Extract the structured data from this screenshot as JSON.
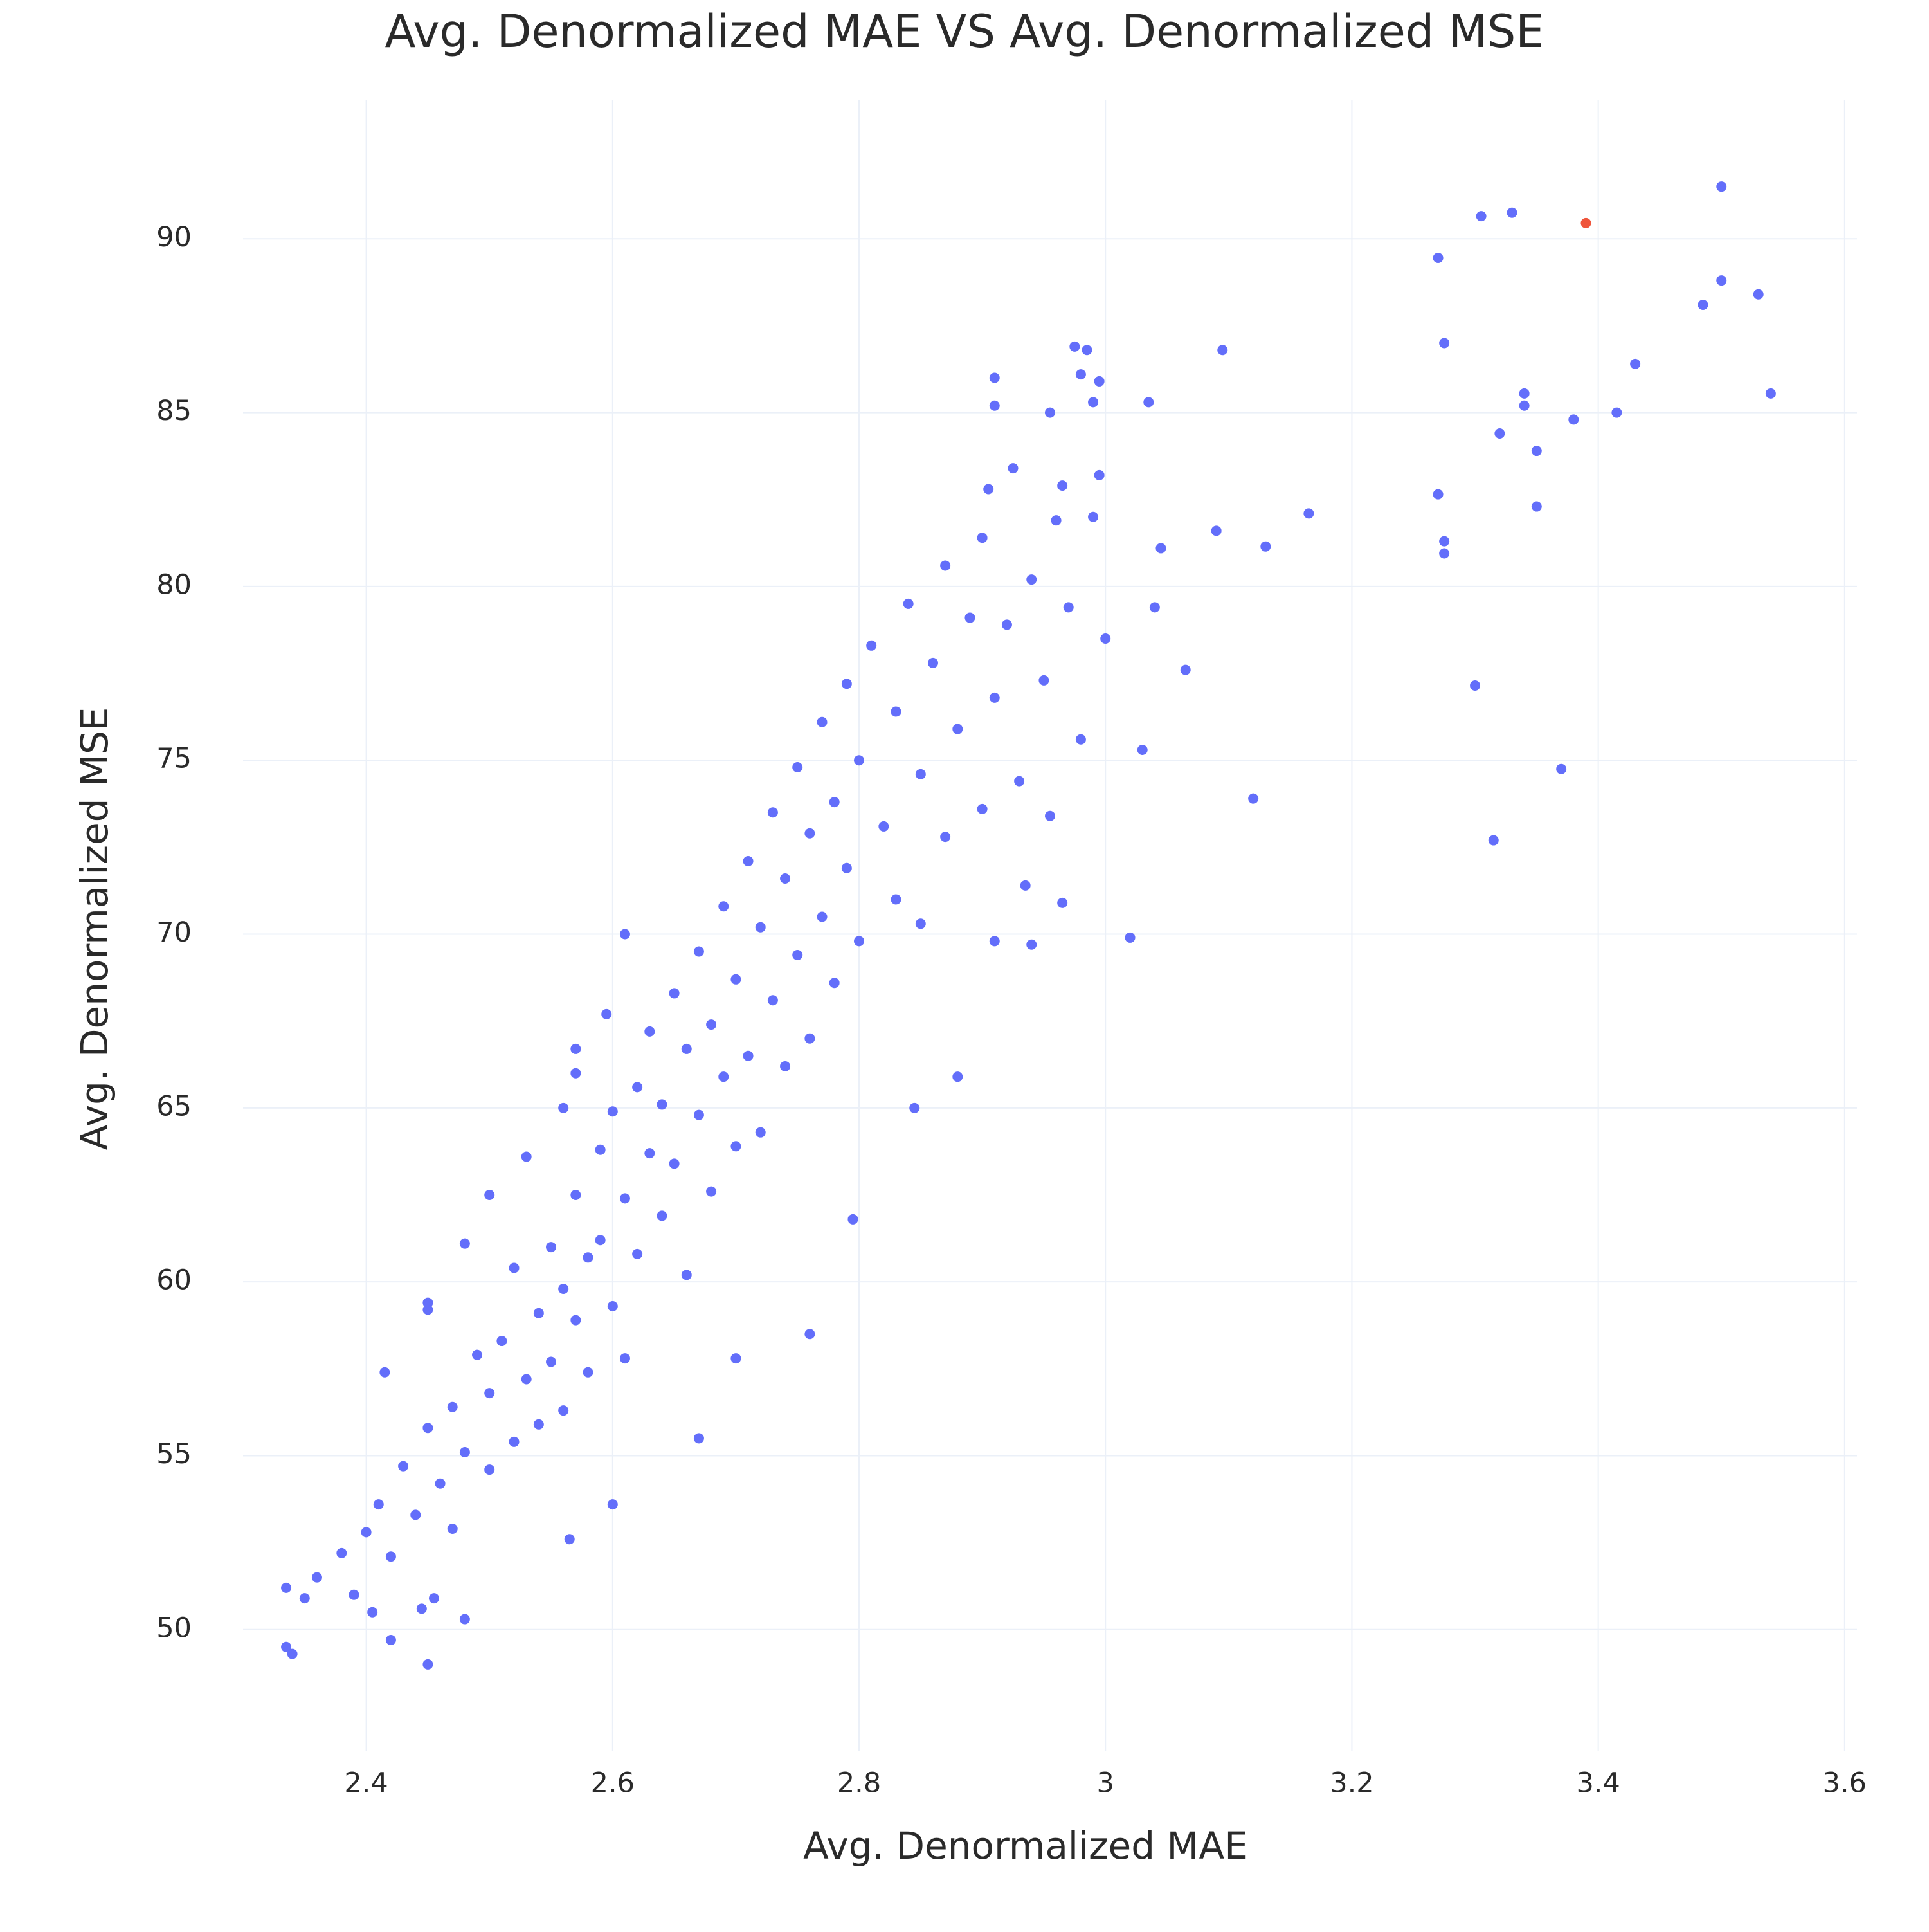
{
  "chart_data": {
    "type": "scatter",
    "title": "Avg. Denormalized MAE VS Avg. Denormalized MSE",
    "x_label": "Avg. Denormalized MAE",
    "y_label": "Avg. Denormalized MSE",
    "xlim": [
      2.3,
      3.61
    ],
    "ylim": [
      46.5,
      94
    ],
    "xticks": [
      2.4,
      2.6,
      2.8,
      3,
      3.2,
      3.4,
      3.6
    ],
    "yticks": [
      50,
      55,
      60,
      65,
      70,
      75,
      80,
      85,
      90
    ],
    "grid": true,
    "series": [
      {
        "color": "#636efa",
        "x": [
          3.5,
          3.305,
          3.33,
          3.27,
          3.5,
          3.485,
          3.53,
          3.275,
          3.43,
          3.54,
          3.34,
          3.34,
          3.415,
          3.32,
          3.38,
          3.35,
          3.27,
          3.35,
          3.275,
          3.275,
          3.3,
          3.37,
          3.315,
          3.165,
          3.13,
          3.09,
          3.095,
          3.12,
          3.065,
          3.02,
          3.03,
          3.035,
          3.045,
          3.04,
          2.975,
          2.98,
          2.985,
          2.99,
          2.91,
          2.91,
          2.995,
          2.955,
          2.925,
          2.965,
          2.995,
          2.905,
          2.88,
          2.845,
          2.795,
          2.76,
          2.7,
          2.67,
          2.45,
          2.335,
          2.34,
          2.42,
          2.48,
          2.405,
          2.335,
          2.35,
          2.445,
          2.455,
          2.565,
          2.6,
          2.415,
          2.48,
          2.45,
          2.45,
          2.57,
          2.61,
          2.595,
          2.57,
          2.53,
          2.56,
          2.5,
          2.955,
          2.965,
          2.94,
          2.935,
          2.91,
          2.36,
          2.38,
          2.39,
          2.4,
          2.41,
          2.42,
          2.43,
          2.44,
          2.45,
          2.46,
          2.47,
          2.47,
          2.48,
          2.49,
          2.5,
          2.5,
          2.51,
          2.52,
          2.52,
          2.53,
          2.54,
          2.54,
          2.55,
          2.55,
          2.56,
          2.56,
          2.57,
          2.57,
          2.58,
          2.58,
          2.59,
          2.59,
          2.6,
          2.6,
          2.61,
          2.61,
          2.62,
          2.62,
          2.63,
          2.63,
          2.64,
          2.64,
          2.65,
          2.65,
          2.66,
          2.66,
          2.67,
          2.67,
          2.68,
          2.68,
          2.69,
          2.69,
          2.7,
          2.7,
          2.71,
          2.71,
          2.72,
          2.72,
          2.73,
          2.73,
          2.74,
          2.74,
          2.75,
          2.75,
          2.76,
          2.76,
          2.77,
          2.77,
          2.78,
          2.78,
          2.79,
          2.79,
          2.8,
          2.8,
          2.81,
          2.82,
          2.83,
          2.83,
          2.84,
          2.85,
          2.85,
          2.86,
          2.87,
          2.87,
          2.88,
          2.89,
          2.9,
          2.9,
          2.91,
          2.92,
          2.93,
          2.94,
          2.95,
          2.96,
          2.97,
          2.98,
          2.99,
          3.0
        ],
        "values": [
          91.5,
          90.65,
          90.75,
          89.45,
          88.8,
          88.1,
          88.4,
          87.0,
          86.4,
          85.55,
          85.55,
          85.2,
          85.0,
          84.4,
          84.8,
          83.9,
          82.65,
          82.3,
          81.3,
          80.95,
          77.15,
          74.75,
          72.7,
          82.1,
          81.15,
          81.6,
          86.8,
          73.9,
          77.6,
          69.9,
          75.3,
          85.3,
          81.1,
          79.4,
          86.9,
          86.1,
          86.8,
          85.3,
          86.0,
          85.2,
          85.9,
          85.0,
          83.4,
          82.9,
          83.2,
          82.8,
          65.9,
          65.0,
          61.8,
          58.5,
          57.8,
          55.5,
          49.0,
          49.5,
          49.3,
          49.7,
          50.3,
          50.5,
          51.2,
          50.9,
          50.6,
          50.9,
          52.6,
          53.6,
          57.4,
          61.1,
          59.4,
          59.2,
          66.7,
          70.0,
          67.7,
          66.0,
          63.6,
          65.0,
          62.5,
          73.4,
          70.9,
          69.7,
          71.4,
          69.8,
          51.5,
          52.2,
          51.0,
          52.8,
          53.6,
          52.1,
          54.7,
          53.3,
          55.8,
          54.2,
          52.9,
          56.4,
          55.1,
          57.9,
          54.6,
          56.8,
          58.3,
          55.4,
          60.4,
          57.2,
          59.1,
          55.9,
          61.0,
          57.7,
          59.8,
          56.3,
          62.5,
          58.9,
          60.7,
          57.4,
          63.8,
          61.2,
          59.3,
          64.9,
          62.4,
          57.8,
          65.6,
          60.8,
          63.7,
          67.2,
          61.9,
          65.1,
          68.3,
          63.4,
          66.7,
          60.2,
          64.8,
          69.5,
          67.4,
          62.6,
          70.8,
          65.9,
          68.7,
          63.9,
          72.1,
          66.5,
          70.2,
          64.3,
          73.5,
          68.1,
          71.6,
          66.2,
          74.8,
          69.4,
          72.9,
          67.0,
          76.1,
          70.5,
          73.8,
          68.6,
          77.2,
          71.9,
          75.0,
          69.8,
          78.3,
          73.1,
          76.4,
          71.0,
          79.5,
          74.6,
          70.3,
          77.8,
          80.6,
          72.8,
          75.9,
          79.1,
          73.6,
          81.4,
          76.8,
          78.9,
          74.4,
          80.2,
          77.3,
          81.9,
          79.4,
          75.6,
          82.0,
          78.5
        ]
      },
      {
        "color": "#ef553b",
        "x": [
          3.39
        ],
        "values": [
          90.45
        ]
      }
    ]
  }
}
